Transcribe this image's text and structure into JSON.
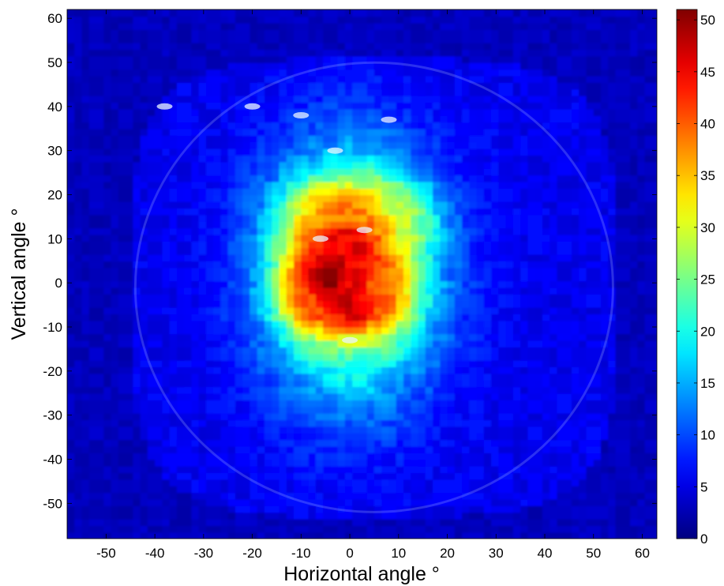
{
  "chart_data": {
    "type": "heatmap",
    "title": "",
    "xlabel": "Horizontal angle °",
    "ylabel": "Vertical angle °",
    "xlim": [
      -58,
      63
    ],
    "ylim": [
      -58,
      62
    ],
    "x_ticks": [
      -50,
      -40,
      -30,
      -20,
      -10,
      0,
      10,
      20,
      30,
      40,
      50,
      60
    ],
    "y_ticks": [
      -50,
      -40,
      -30,
      -20,
      -10,
      0,
      10,
      20,
      30,
      40,
      50,
      60
    ],
    "colorbar": {
      "min": 0,
      "max": 51,
      "ticks": [
        0,
        5,
        10,
        15,
        20,
        25,
        30,
        35,
        40,
        45,
        50
      ],
      "colormap": "jet"
    },
    "background_value": 3,
    "field_boundary": {
      "x_range": [
        -45,
        55
      ],
      "y_range": [
        -53,
        51
      ]
    },
    "peak": {
      "x": -3,
      "y": 0,
      "value": 50
    },
    "hotspots": [
      {
        "x": -4,
        "y": 2,
        "value": 50,
        "sx": 6,
        "sy": 7
      },
      {
        "x": 0,
        "y": 8,
        "value": 46,
        "sx": 6,
        "sy": 6
      },
      {
        "x": 1,
        "y": -6,
        "value": 47,
        "sx": 4,
        "sy": 3
      },
      {
        "x": -2,
        "y": 16,
        "value": 38,
        "sx": 7,
        "sy": 5
      },
      {
        "x": 6,
        "y": -2,
        "value": 40,
        "sx": 5,
        "sy": 6
      },
      {
        "x": -8,
        "y": -4,
        "value": 42,
        "sx": 4,
        "sy": 4
      },
      {
        "x": 8,
        "y": 14,
        "value": 30,
        "sx": 6,
        "sy": 6
      }
    ],
    "envelope": {
      "x": 0,
      "y": 2,
      "value": 28,
      "sx": 12,
      "sy": 19
    },
    "bright_spots": [
      {
        "x": -38,
        "y": 40
      },
      {
        "x": -20,
        "y": 40
      },
      {
        "x": -10,
        "y": 38
      },
      {
        "x": 8,
        "y": 37
      },
      {
        "x": -3,
        "y": 30
      },
      {
        "x": 0,
        "y": -13
      },
      {
        "x": 3,
        "y": 12
      },
      {
        "x": -6,
        "y": 10
      }
    ],
    "grid": false,
    "colors": {
      "jet_0": "#00008f",
      "jet_1": "#0000ff",
      "jet_2": "#00ffff",
      "jet_3": "#ffff00",
      "jet_4": "#ff0000",
      "jet_5": "#800000"
    }
  }
}
